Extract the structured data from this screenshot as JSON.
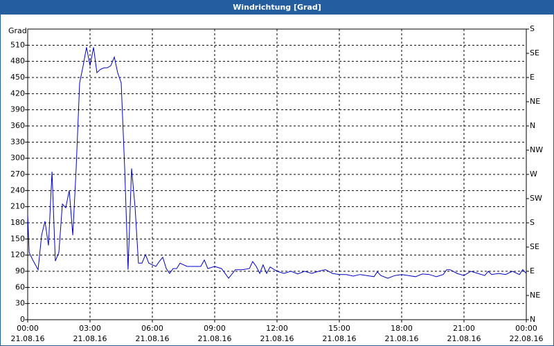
{
  "chart_data": {
    "type": "line",
    "title": "Windrichtung [Grad]",
    "y_label": "Grad",
    "x": [
      0,
      0.07,
      0.23,
      0.5,
      0.67,
      0.83,
      1,
      1.17,
      1.33,
      1.5,
      1.67,
      1.83,
      2,
      2.17,
      2.33,
      2.5,
      2.67,
      2.83,
      3,
      3.17,
      3.33,
      3.5,
      3.67,
      3.83,
      4,
      4.17,
      4.33,
      4.5,
      4.67,
      4.83,
      5,
      5.17,
      5.33,
      5.5,
      5.67,
      5.83,
      6,
      6.17,
      6.33,
      6.5,
      6.67,
      6.83,
      7,
      7.17,
      7.33,
      7.67,
      8,
      8.33,
      8.5,
      8.67,
      9,
      9.33,
      9.67,
      10,
      10.33,
      10.67,
      10.83,
      11,
      11.17,
      11.33,
      11.5,
      11.67,
      12,
      12.33,
      12.67,
      13,
      13.33,
      13.67,
      14,
      14.33,
      14.67,
      15,
      15.33,
      15.67,
      16,
      16.33,
      16.67,
      16.83,
      17,
      17.33,
      17.67,
      18,
      18.33,
      18.67,
      19,
      19.33,
      19.67,
      20,
      20.17,
      20.33,
      20.67,
      21,
      21.33,
      21.67,
      22,
      22.17,
      22.33,
      22.67,
      23,
      23.33,
      23.67,
      23.83,
      24
    ],
    "series": [
      {
        "name": "Windrichtung",
        "color": "#0000c8",
        "values": [
          195,
          125,
          112,
          93,
          157,
          183,
          138,
          275,
          109,
          125,
          215,
          208,
          240,
          157,
          279,
          440,
          472,
          506,
          472,
          506,
          459,
          465,
          468,
          468,
          472,
          488,
          459,
          440,
          279,
          93,
          281,
          208,
          105,
          105,
          121,
          105,
          102,
          99,
          108,
          116,
          95,
          86,
          95,
          95,
          105,
          99,
          99,
          99,
          111,
          95,
          99,
          95,
          77,
          93,
          93,
          95,
          108,
          99,
          86,
          102,
          86,
          98,
          90,
          86,
          90,
          85,
          90,
          86,
          90,
          93,
          86,
          84,
          84,
          81,
          84,
          82,
          80,
          89,
          82,
          77,
          82,
          84,
          82,
          80,
          85,
          84,
          80,
          84,
          93,
          93,
          86,
          82,
          90,
          86,
          82,
          90,
          84,
          86,
          84,
          90,
          84,
          93,
          86
        ]
      }
    ],
    "xlim": [
      0,
      24
    ],
    "xticks": [
      {
        "value": 0,
        "label": "00:00"
      },
      {
        "value": 3,
        "label": "03:00"
      },
      {
        "value": 6,
        "label": "06:00"
      },
      {
        "value": 9,
        "label": "09:00"
      },
      {
        "value": 12,
        "label": "12:00"
      },
      {
        "value": 15,
        "label": "15:00"
      },
      {
        "value": 18,
        "label": "18:00"
      },
      {
        "value": 21,
        "label": "21:00"
      },
      {
        "value": 24,
        "label": "00:00"
      }
    ],
    "xtick_dates": [
      "21.08.16",
      "21.08.16",
      "21.08.16",
      "21.08.16",
      "21.08.16",
      "21.08.16",
      "21.08.16",
      "21.08.16",
      "22.08.16"
    ],
    "ylim": [
      0,
      540
    ],
    "yticks": [
      0,
      30,
      60,
      90,
      120,
      150,
      180,
      210,
      240,
      270,
      300,
      330,
      360,
      390,
      420,
      450,
      480,
      510
    ],
    "y2lim": [
      0,
      540
    ],
    "y2ticks": [
      {
        "value": 0,
        "label": "N"
      },
      {
        "value": 45,
        "label": "NE"
      },
      {
        "value": 90,
        "label": "E"
      },
      {
        "value": 135,
        "label": "SE"
      },
      {
        "value": 180,
        "label": "S"
      },
      {
        "value": 225,
        "label": "SW"
      },
      {
        "value": 270,
        "label": "W"
      },
      {
        "value": 315,
        "label": "NW"
      },
      {
        "value": 360,
        "label": "N"
      },
      {
        "value": 405,
        "label": "NE"
      },
      {
        "value": 450,
        "label": "E"
      },
      {
        "value": 495,
        "label": "SE"
      },
      {
        "value": 540,
        "label": "S"
      }
    ],
    "grid": true
  }
}
